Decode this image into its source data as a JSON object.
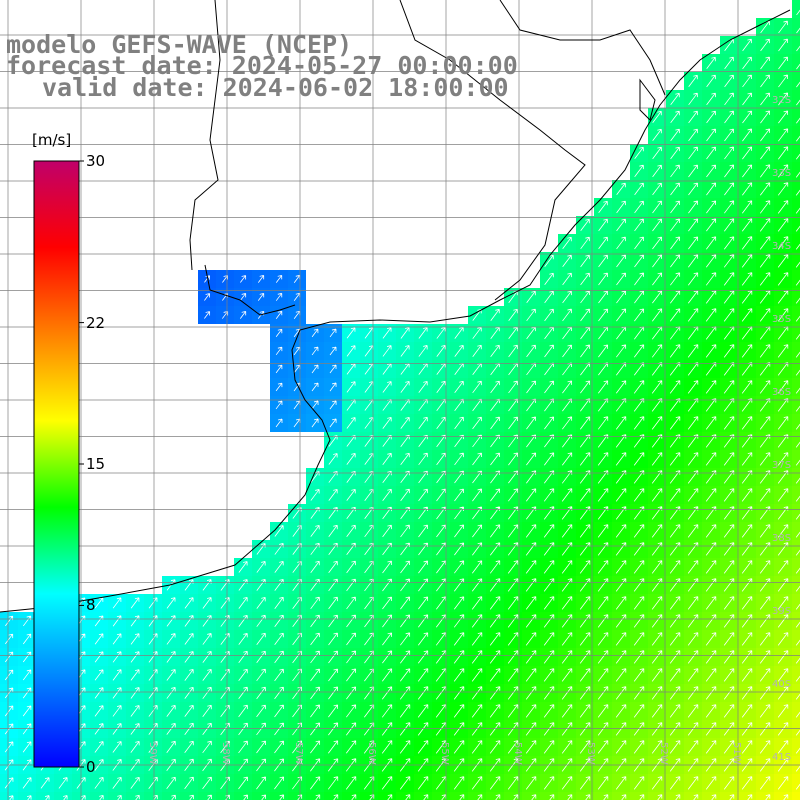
{
  "header": {
    "model_line": "modelo GEFS-WAVE (NCEP)",
    "forecast_line": "forecast date: 2024-05-27 00:00:00",
    "valid_line": "valid date: 2024-06-02 18:00:00"
  },
  "colorbar": {
    "units": "[m/s]",
    "ticks": [
      {
        "label": "30",
        "value": 30
      },
      {
        "label": "22",
        "value": 22
      },
      {
        "label": "15",
        "value": 15
      },
      {
        "label": "8",
        "value": 8
      },
      {
        "label": "0",
        "value": 0
      }
    ],
    "colors": [
      "#0000ff",
      "#0080ff",
      "#00ffff",
      "#00ff00",
      "#ffff00",
      "#ff8000",
      "#ff0000",
      "#c0006a"
    ]
  },
  "grid": {
    "lat_labels": [
      "32S",
      "33S",
      "34S",
      "35S",
      "36S",
      "37S",
      "38S",
      "39S",
      "40S",
      "41S"
    ],
    "lon_labels": [
      "59W",
      "58W",
      "57W",
      "56W",
      "55W",
      "54W",
      "53W",
      "52W",
      "51W"
    ]
  },
  "colors": {
    "land": "#ffffff",
    "coastline": "#000000",
    "gridline": "#808080",
    "arrow": "#ffffff",
    "header_text": "#808080"
  }
}
